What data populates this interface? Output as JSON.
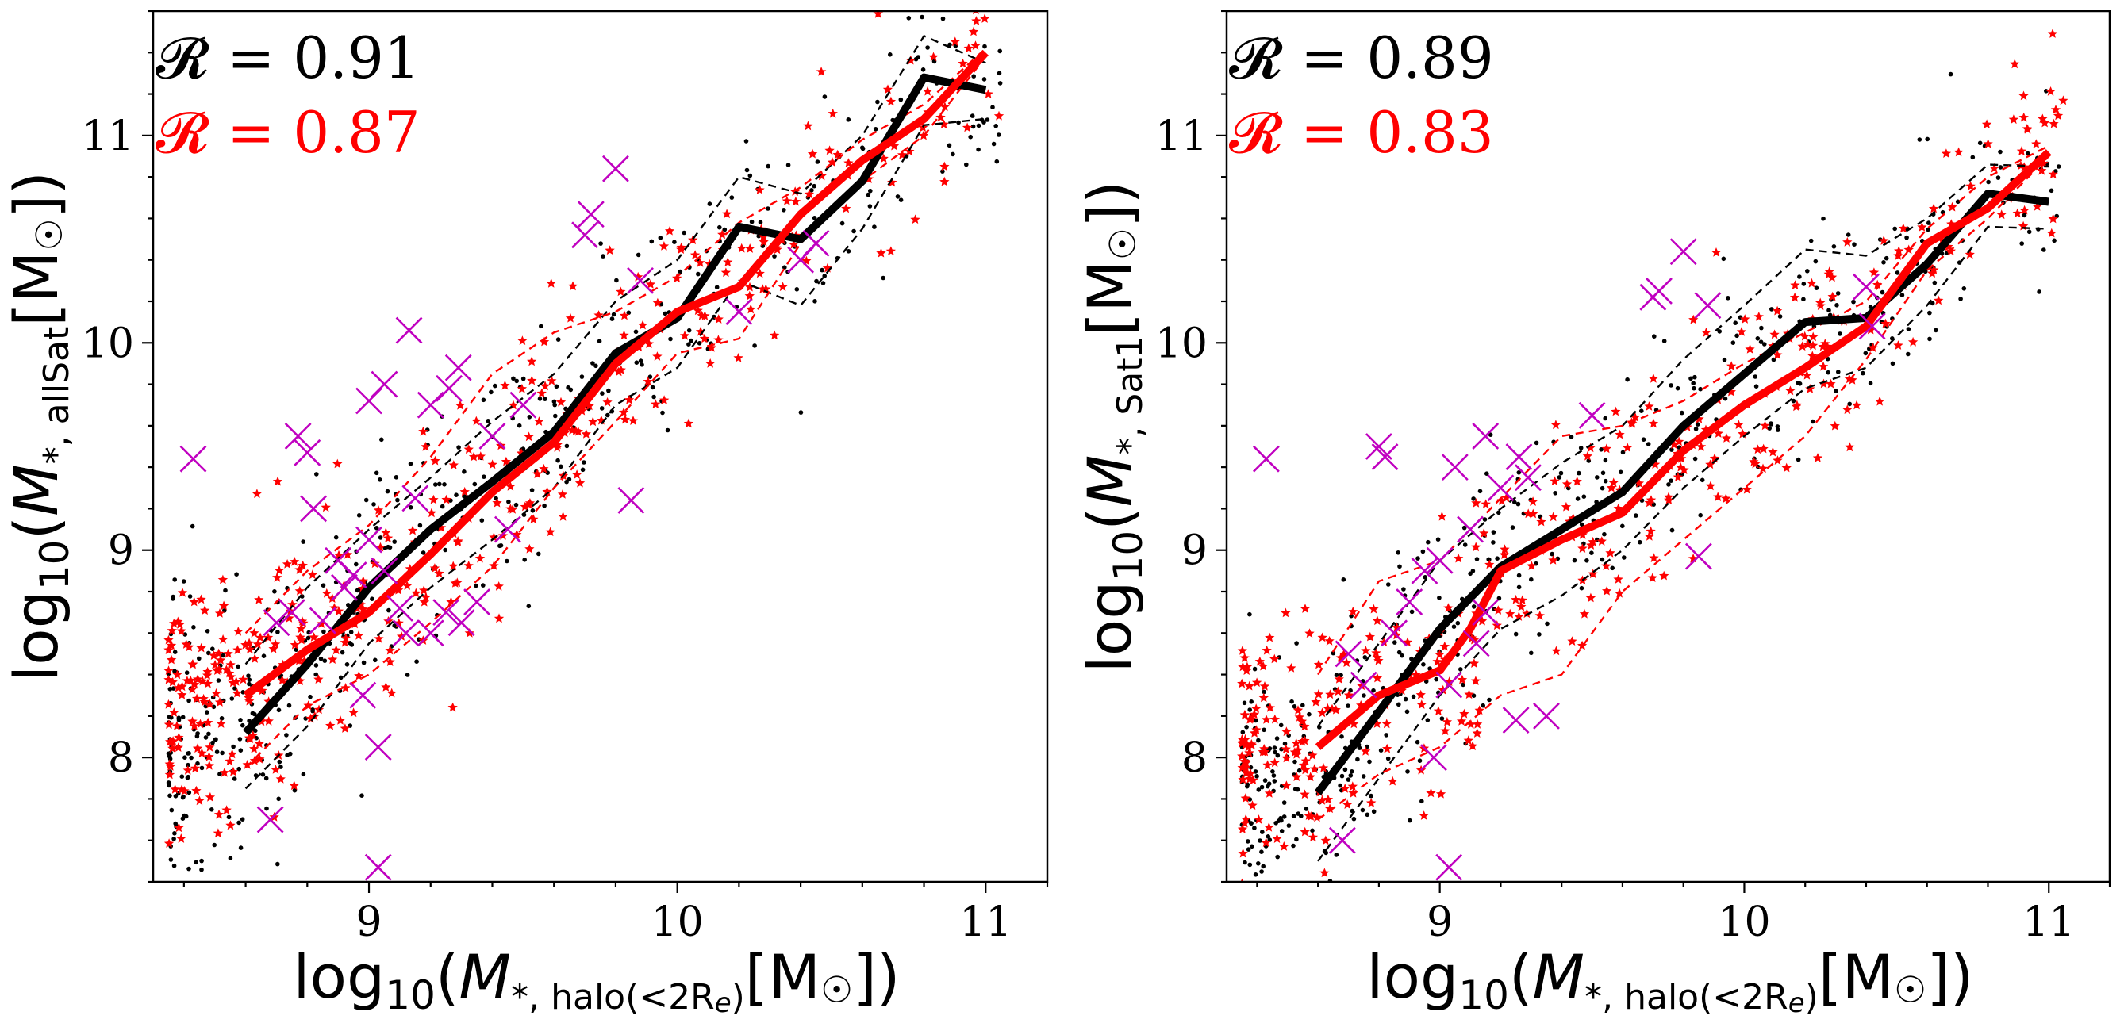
{
  "chart_data": [
    {
      "type": "scatter",
      "panel": "left",
      "xlabel": "log10(M*,halo(<2Re)[M☉])",
      "ylabel": "log10(M*,allSat[M☉])",
      "xlabel_parts": {
        "base": "log",
        "sub1": "10",
        "open": "(",
        "M": "M",
        "msub": "*, halo(<2R",
        "re": "e",
        "close": ")",
        "unit": "[M",
        "sun": "☉",
        "end": "])"
      },
      "ylabel_parts": {
        "base": "log",
        "sub1": "10",
        "open": "(",
        "M": "M",
        "msub": "*, allSat",
        "unit": "[M",
        "sun": "☉",
        "end": "])"
      },
      "xlim": [
        8.3,
        11.2
      ],
      "ylim": [
        7.4,
        11.6
      ],
      "xticks": [
        9,
        10,
        11
      ],
      "yticks": [
        8,
        9,
        10,
        11
      ],
      "xtick_labels": [
        "9",
        "10",
        "11"
      ],
      "ytick_labels": [
        "8",
        "9",
        "10",
        "11"
      ],
      "annotations": [
        {
          "text": "𝓡 = 0.91",
          "color": "#000000"
        },
        {
          "text": "𝓡 = 0.87",
          "color": "#ff0000"
        }
      ],
      "series": [
        {
          "name": "black median",
          "color": "#000000",
          "style": "thick-line",
          "x": [
            8.6,
            8.8,
            9.0,
            9.2,
            9.4,
            9.6,
            9.8,
            10.0,
            10.2,
            10.4,
            10.6,
            10.8,
            11.0
          ],
          "y": [
            8.12,
            8.45,
            8.82,
            9.1,
            9.33,
            9.57,
            9.95,
            10.12,
            10.56,
            10.5,
            10.78,
            11.28,
            11.22
          ]
        },
        {
          "name": "black upper",
          "color": "#000000",
          "style": "dashed",
          "x": [
            8.6,
            8.8,
            9.0,
            9.2,
            9.4,
            9.6,
            9.8,
            10.0,
            10.2,
            10.4,
            10.6,
            10.8,
            11.0
          ],
          "y": [
            8.45,
            8.82,
            9.1,
            9.35,
            9.62,
            9.85,
            10.2,
            10.4,
            10.8,
            10.72,
            11.0,
            11.48,
            11.35
          ]
        },
        {
          "name": "black lower",
          "color": "#000000",
          "style": "dashed",
          "x": [
            8.6,
            8.8,
            9.0,
            9.2,
            9.4,
            9.6,
            9.8,
            10.0,
            10.2,
            10.4,
            10.6,
            10.8,
            11.0
          ],
          "y": [
            7.85,
            8.15,
            8.55,
            8.82,
            9.05,
            9.3,
            9.7,
            9.88,
            10.3,
            10.18,
            10.55,
            11.05,
            11.08
          ]
        },
        {
          "name": "red median",
          "color": "#ff0000",
          "style": "thick-line",
          "x": [
            8.6,
            8.8,
            9.0,
            9.2,
            9.4,
            9.6,
            9.8,
            10.0,
            10.2,
            10.4,
            10.6,
            10.8,
            11.0
          ],
          "y": [
            8.3,
            8.52,
            8.7,
            8.98,
            9.28,
            9.52,
            9.9,
            10.15,
            10.27,
            10.62,
            10.88,
            11.08,
            11.4
          ]
        },
        {
          "name": "red upper",
          "color": "#ff0000",
          "style": "dashed",
          "x": [
            8.6,
            8.8,
            9.0,
            9.2,
            9.4,
            9.6,
            9.8,
            10.0,
            10.2,
            10.4,
            10.6,
            10.8,
            11.0
          ],
          "y": [
            8.6,
            8.9,
            9.12,
            9.45,
            9.85,
            10.05,
            10.15,
            10.32,
            10.58,
            10.75,
            10.98,
            11.15,
            11.42
          ]
        },
        {
          "name": "red lower",
          "color": "#ff0000",
          "style": "dashed",
          "x": [
            8.6,
            8.8,
            9.0,
            9.2,
            9.4,
            9.6,
            9.8,
            10.0,
            10.2,
            10.4,
            10.6,
            10.8,
            11.0
          ],
          "y": [
            7.95,
            8.25,
            8.4,
            8.65,
            8.92,
            9.3,
            9.62,
            9.95,
            10.02,
            10.48,
            10.78,
            11.0,
            11.38
          ]
        },
        {
          "name": "magenta crosses",
          "color": "#c000c0",
          "style": "x-marker",
          "x": [
            8.43,
            9.05,
            9.13,
            8.77,
            8.8,
            8.82,
            9.0,
            9.2,
            9.26,
            9.29,
            9.15,
            9.05,
            8.9,
            8.95,
            9.0,
            9.1,
            9.2,
            9.3,
            9.4,
            9.5,
            8.7,
            8.75,
            8.85,
            8.92,
            9.12,
            9.25,
            9.35,
            9.45,
            9.7,
            9.72,
            9.8,
            9.85,
            9.88,
            10.4,
            10.45,
            10.2,
            8.98,
            9.03,
            8.68,
            9.03
          ],
          "y": [
            9.44,
            9.8,
            10.06,
            9.55,
            9.47,
            9.2,
            9.72,
            9.7,
            9.78,
            9.88,
            9.25,
            8.9,
            8.95,
            8.88,
            9.05,
            8.72,
            8.6,
            8.65,
            9.55,
            9.7,
            8.65,
            8.7,
            8.66,
            8.82,
            8.6,
            8.7,
            8.75,
            9.1,
            10.52,
            10.62,
            10.84,
            9.24,
            10.3,
            10.4,
            10.48,
            10.15,
            8.3,
            8.05,
            7.7,
            7.47
          ]
        }
      ]
    },
    {
      "type": "scatter",
      "panel": "right",
      "xlabel": "log10(M*,halo(<2Re)[M☉])",
      "ylabel": "log10(M*,Sat1[M☉])",
      "xlabel_parts": {
        "base": "log",
        "sub1": "10",
        "open": "(",
        "M": "M",
        "msub": "*, halo(<2R",
        "re": "e",
        "close": ")",
        "unit": "[M",
        "sun": "☉",
        "end": "])"
      },
      "ylabel_parts": {
        "base": "log",
        "sub1": "10",
        "open": "(",
        "M": "M",
        "msub": "*, Sat1",
        "unit": "[M",
        "sun": "☉",
        "end": "])"
      },
      "xlim": [
        8.3,
        11.2
      ],
      "ylim": [
        7.4,
        11.6
      ],
      "xticks": [
        9,
        10,
        11
      ],
      "yticks": [
        8,
        9,
        10,
        11
      ],
      "xtick_labels": [
        "9",
        "10",
        "11"
      ],
      "ytick_labels": [
        "8",
        "9",
        "10",
        "11"
      ],
      "annotations": [
        {
          "text": "𝓡 = 0.89",
          "color": "#000000"
        },
        {
          "text": "𝓡 = 0.83",
          "color": "#ff0000"
        }
      ],
      "series": [
        {
          "name": "black median",
          "color": "#000000",
          "style": "thick-line",
          "x": [
            8.6,
            8.8,
            9.0,
            9.2,
            9.4,
            9.6,
            9.8,
            10.0,
            10.2,
            10.4,
            10.6,
            10.8,
            11.0
          ],
          "y": [
            7.83,
            8.22,
            8.62,
            8.92,
            9.1,
            9.28,
            9.6,
            9.85,
            10.1,
            10.12,
            10.38,
            10.72,
            10.68
          ]
        },
        {
          "name": "black upper",
          "color": "#000000",
          "style": "dashed",
          "x": [
            8.6,
            8.8,
            9.0,
            9.2,
            9.4,
            9.6,
            9.8,
            10.0,
            10.2,
            10.4,
            10.6,
            10.8,
            11.0
          ],
          "y": [
            8.15,
            8.55,
            8.95,
            9.2,
            9.42,
            9.6,
            9.92,
            10.18,
            10.45,
            10.42,
            10.6,
            10.86,
            10.85
          ]
        },
        {
          "name": "black lower",
          "color": "#000000",
          "style": "dashed",
          "x": [
            8.6,
            8.8,
            9.0,
            9.2,
            9.4,
            9.6,
            9.8,
            10.0,
            10.2,
            10.4,
            10.6,
            10.8,
            11.0
          ],
          "y": [
            7.5,
            7.9,
            8.3,
            8.62,
            8.78,
            9.0,
            9.3,
            9.55,
            9.78,
            9.88,
            10.18,
            10.56,
            10.55
          ]
        },
        {
          "name": "red median",
          "color": "#ff0000",
          "style": "thick-line",
          "x": [
            8.6,
            8.8,
            9.0,
            9.1,
            9.2,
            9.4,
            9.6,
            9.8,
            10.0,
            10.2,
            10.4,
            10.6,
            10.8,
            11.0
          ],
          "y": [
            8.05,
            8.3,
            8.42,
            8.62,
            8.9,
            9.05,
            9.18,
            9.48,
            9.7,
            9.88,
            10.08,
            10.48,
            10.65,
            10.92
          ]
        },
        {
          "name": "red upper",
          "color": "#ff0000",
          "style": "dashed",
          "x": [
            8.6,
            8.8,
            9.0,
            9.2,
            9.4,
            9.6,
            9.8,
            10.0,
            10.2,
            10.4,
            10.6,
            10.8,
            11.0
          ],
          "y": [
            8.4,
            8.85,
            8.95,
            9.25,
            9.55,
            9.6,
            9.72,
            9.9,
            10.05,
            10.2,
            10.55,
            10.8,
            10.95
          ]
        },
        {
          "name": "red lower",
          "color": "#ff0000",
          "style": "dashed",
          "x": [
            8.6,
            8.8,
            9.0,
            9.2,
            9.4,
            9.6,
            9.8,
            10.0,
            10.2,
            10.4,
            10.6,
            10.8,
            11.0
          ],
          "y": [
            7.7,
            7.92,
            8.05,
            8.3,
            8.4,
            8.8,
            9.05,
            9.3,
            9.55,
            9.92,
            10.35,
            10.6,
            10.9
          ]
        },
        {
          "name": "magenta crosses",
          "color": "#c000c0",
          "style": "x-marker",
          "x": [
            8.43,
            8.8,
            8.82,
            9.05,
            9.15,
            9.2,
            9.26,
            9.29,
            9.1,
            9.0,
            8.95,
            8.9,
            9.5,
            9.7,
            9.72,
            9.8,
            9.85,
            9.88,
            10.4,
            10.42,
            8.7,
            8.75,
            8.85,
            9.12,
            9.25,
            9.35,
            8.98,
            9.03,
            8.68,
            9.03,
            9.15
          ],
          "y": [
            9.44,
            9.5,
            9.45,
            9.4,
            9.55,
            9.3,
            9.45,
            9.35,
            9.1,
            8.95,
            8.9,
            8.75,
            9.65,
            10.22,
            10.25,
            10.44,
            8.97,
            10.18,
            10.27,
            10.08,
            8.5,
            8.35,
            8.6,
            8.55,
            8.18,
            8.2,
            8.0,
            8.35,
            7.6,
            7.47,
            8.7
          ]
        }
      ]
    }
  ]
}
